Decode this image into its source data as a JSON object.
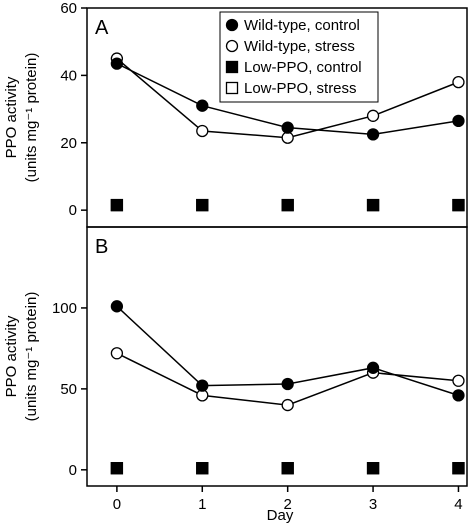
{
  "chart_data": {
    "type": "line",
    "xlabel": "Day",
    "x": [
      0,
      1,
      2,
      3,
      4
    ],
    "legend": {
      "placement": "top-right of panel A",
      "entries": [
        {
          "label": "Wild-type, control",
          "marker": "filled-circle"
        },
        {
          "label": "Wild-type, stress",
          "marker": "open-circle"
        },
        {
          "label": "Low-PPO, control",
          "marker": "filled-square"
        },
        {
          "label": "Low-PPO, stress",
          "marker": "open-square"
        }
      ]
    },
    "panels": [
      {
        "letter": "A",
        "ylabel_line1": "PPO activity",
        "ylabel_line2": "(units mg⁻¹ protein)",
        "ylim": [
          -5,
          60
        ],
        "yticks": [
          0,
          20,
          40,
          60
        ],
        "xlim": [
          -0.35,
          4.1
        ],
        "series": [
          {
            "name": "Wild-type, control",
            "marker": "filled-circle",
            "line": true,
            "values": [
              43.5,
              31,
              24.5,
              22.5,
              26.5
            ]
          },
          {
            "name": "Wild-type, stress",
            "marker": "open-circle",
            "line": true,
            "values": [
              45,
              23.5,
              21.5,
              28,
              38
            ]
          },
          {
            "name": "Low-PPO, control",
            "marker": "filled-square",
            "line": false,
            "values": [
              1.5,
              1.5,
              1.5,
              1.5,
              1.5
            ]
          },
          {
            "name": "Low-PPO, stress",
            "marker": "open-square",
            "line": false,
            "values": [
              1.5,
              1.5,
              1.5,
              1.5,
              1.5
            ]
          }
        ]
      },
      {
        "letter": "B",
        "ylabel_line1": "PPO activity",
        "ylabel_line2": "(units mg⁻¹ protein)",
        "ylim": [
          -10,
          150
        ],
        "yticks": [
          0,
          50,
          100
        ],
        "xlim": [
          -0.35,
          4.1
        ],
        "series": [
          {
            "name": "Wild-type, control",
            "marker": "filled-circle",
            "line": true,
            "values": [
              101,
              52,
              53,
              63,
              46
            ]
          },
          {
            "name": "Wild-type, stress",
            "marker": "open-circle",
            "line": true,
            "values": [
              72,
              46,
              40,
              60,
              55
            ]
          },
          {
            "name": "Low-PPO, control",
            "marker": "filled-square",
            "line": false,
            "values": [
              1,
              1,
              1,
              1,
              1
            ]
          },
          {
            "name": "Low-PPO, stress",
            "marker": "open-square",
            "line": false,
            "values": [
              1,
              1,
              1,
              1,
              1
            ]
          }
        ]
      }
    ]
  }
}
